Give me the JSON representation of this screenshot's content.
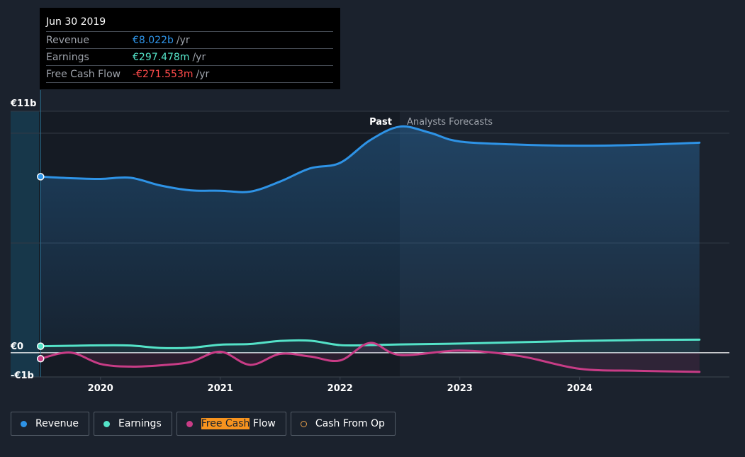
{
  "tooltip": {
    "date": "Jun 30 2019",
    "rows": [
      {
        "label": "Revenue",
        "value": "€8.022b",
        "unit": "/yr",
        "color": "#2e93e6"
      },
      {
        "label": "Earnings",
        "value": "€297.478m",
        "unit": "/yr",
        "color": "#54e3c8"
      },
      {
        "label": "Free Cash Flow",
        "value": "-€271.553m",
        "unit": "/yr",
        "color": "#ff4b4b"
      }
    ]
  },
  "legend": {
    "revenue": {
      "label": "Revenue",
      "color": "#2e93e6"
    },
    "earnings": {
      "label": "Earnings",
      "color": "#54e3c8"
    },
    "fcf": {
      "label_highlight": "Free Cash",
      "label_rest": " Flow",
      "color": "#c83c86"
    },
    "cfo": {
      "label": "Cash From Op",
      "color": "#e8a04a"
    }
  },
  "chart_data": {
    "type": "line",
    "y_tick_labels": [
      "€11b",
      "€0",
      "-€1b"
    ],
    "ylim": [
      -1.1,
      11
    ],
    "x_tick_labels": [
      "2020",
      "2021",
      "2022",
      "2023",
      "2024"
    ],
    "x_ticks": [
      2020,
      2021,
      2022,
      2023,
      2024
    ],
    "xlim": [
      2019.25,
      2025.25
    ],
    "past_label": "Past",
    "forecast_label": "Analysts Forecasts",
    "forecast_start": 2022.5,
    "series": [
      {
        "name": "Revenue",
        "key": "revenue",
        "color": "#2e93e6",
        "x": [
          2019.5,
          2019.75,
          2020.0,
          2020.25,
          2020.5,
          2020.75,
          2021.0,
          2021.25,
          2021.5,
          2021.75,
          2022.0,
          2022.25,
          2022.5,
          2022.75,
          2023.0,
          2023.5,
          2024.0,
          2024.5,
          2025.0
        ],
        "y": [
          8.02,
          7.95,
          7.92,
          7.97,
          7.62,
          7.4,
          7.38,
          7.34,
          7.8,
          8.4,
          8.65,
          9.68,
          10.3,
          10.02,
          9.62,
          9.48,
          9.43,
          9.47,
          9.57
        ]
      },
      {
        "name": "Earnings",
        "key": "earnings",
        "color": "#54e3c8",
        "x": [
          2019.5,
          2019.75,
          2020.0,
          2020.25,
          2020.5,
          2020.75,
          2021.0,
          2021.25,
          2021.5,
          2021.75,
          2022.0,
          2022.25,
          2022.5,
          2023.0,
          2023.5,
          2024.0,
          2024.5,
          2025.0
        ],
        "y": [
          0.3,
          0.32,
          0.34,
          0.33,
          0.22,
          0.23,
          0.37,
          0.4,
          0.54,
          0.55,
          0.35,
          0.35,
          0.38,
          0.42,
          0.48,
          0.54,
          0.58,
          0.6
        ]
      },
      {
        "name": "Free Cash Flow",
        "key": "fcf",
        "color": "#c83c86",
        "x": [
          2019.5,
          2019.75,
          2020.0,
          2020.25,
          2020.5,
          2020.75,
          2021.0,
          2021.25,
          2021.5,
          2021.75,
          2022.0,
          2022.25,
          2022.5,
          2023.0,
          2023.5,
          2024.0,
          2024.5,
          2025.0
        ],
        "y": [
          -0.27,
          0.01,
          -0.51,
          -0.63,
          -0.57,
          -0.42,
          0.05,
          -0.55,
          -0.05,
          -0.17,
          -0.35,
          0.45,
          -0.1,
          0.1,
          -0.15,
          -0.73,
          -0.82,
          -0.87
        ]
      }
    ],
    "highlight_x": 2019.5,
    "grid": true
  }
}
